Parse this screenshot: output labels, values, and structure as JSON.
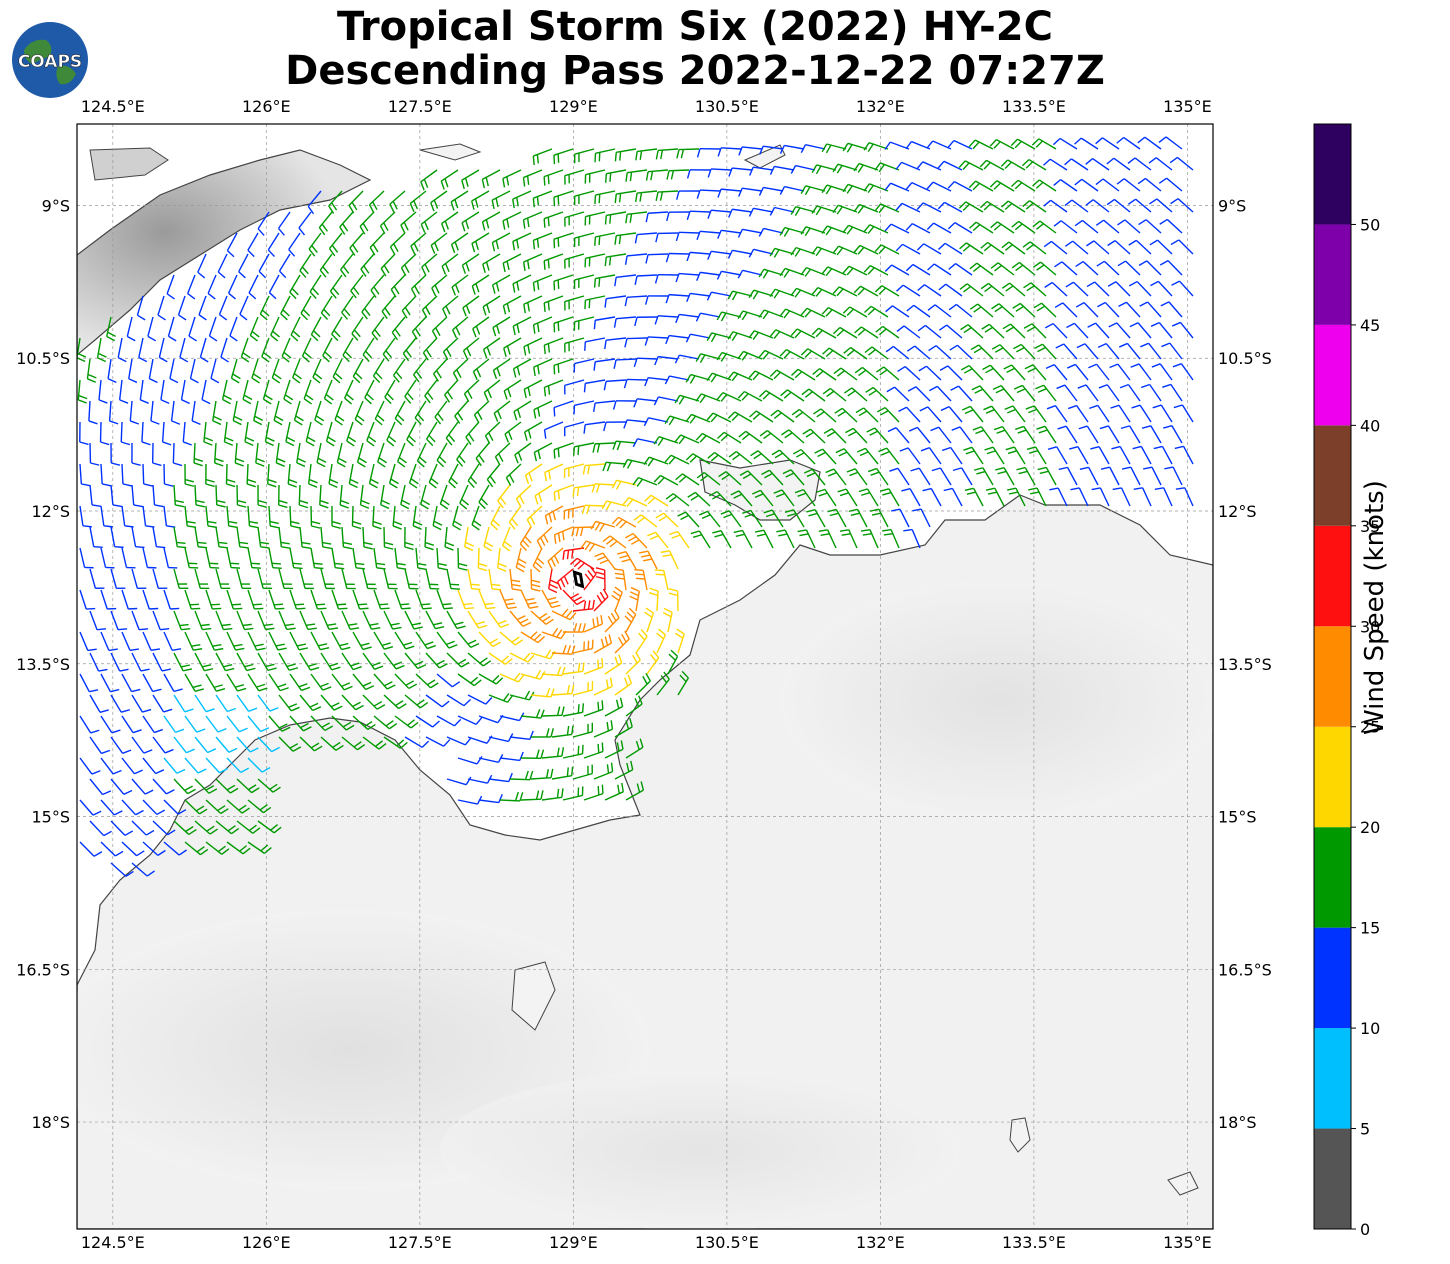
{
  "title": {
    "line1": "Tropical Storm Six (2022) HY-2C",
    "line2": "Descending Pass 2022-12-22 07:27Z"
  },
  "logo": {
    "text": "COAPS"
  },
  "map": {
    "lon_range": [
      124.15,
      135.25
    ],
    "lat_range": [
      -19.05,
      -8.2
    ],
    "lon_ticks": [
      "124.5°E",
      "126°E",
      "127.5°E",
      "129°E",
      "130.5°E",
      "132°E",
      "133.5°E",
      "135°E"
    ],
    "lon_tick_values": [
      124.5,
      126,
      127.5,
      129,
      130.5,
      132,
      133.5,
      135
    ],
    "lat_ticks": [
      "9°S",
      "10.5°S",
      "12°S",
      "13.5°S",
      "15°S",
      "16.5°S",
      "18°S"
    ],
    "lat_tick_values": [
      -9,
      -10.5,
      -12,
      -13.5,
      -15,
      -16.5,
      -18
    ],
    "storm_center": {
      "lon": 129.05,
      "lat": -12.7
    }
  },
  "colorbar": {
    "label": "Wind Speed (knots)",
    "ticks": [
      "0",
      "5",
      "10",
      "15",
      "20",
      "25",
      "30",
      "35",
      "40",
      "45",
      "50"
    ],
    "bins": [
      {
        "from": 0,
        "to": 5,
        "color": "#555555"
      },
      {
        "from": 5,
        "to": 10,
        "color": "#00BFFF"
      },
      {
        "from": 10,
        "to": 15,
        "color": "#0033FF"
      },
      {
        "from": 15,
        "to": 20,
        "color": "#009900"
      },
      {
        "from": 20,
        "to": 25,
        "color": "#FFD700"
      },
      {
        "from": 25,
        "to": 30,
        "color": "#FF8C00"
      },
      {
        "from": 30,
        "to": 35,
        "color": "#FF1010"
      },
      {
        "from": 35,
        "to": 40,
        "color": "#7B3F2A"
      },
      {
        "from": 40,
        "to": 45,
        "color": "#EE00EE"
      },
      {
        "from": 45,
        "to": 50,
        "color": "#7E00AA"
      },
      {
        "from": 50,
        "to": 55,
        "color": "#2E0060"
      }
    ]
  }
}
